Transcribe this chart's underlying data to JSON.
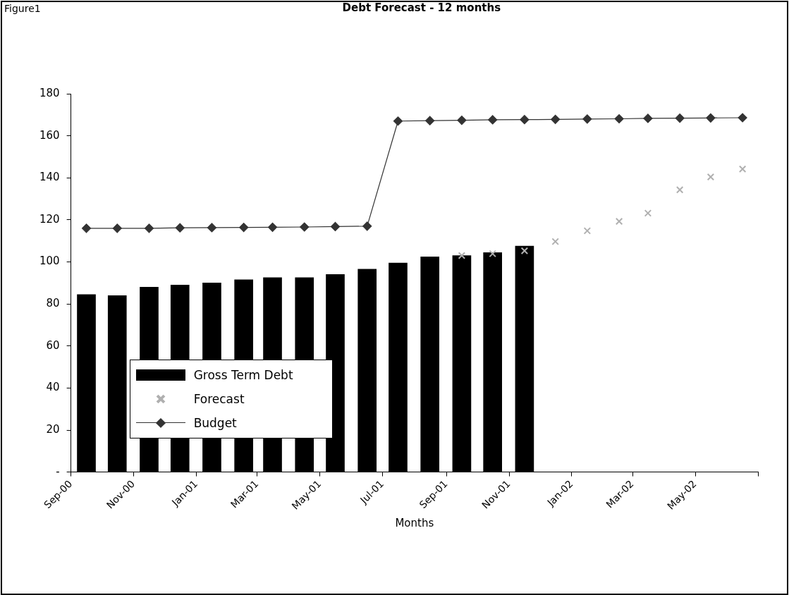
{
  "chart_data": {
    "type": "bar",
    "title": "Debt Forecast - 12 months",
    "xlabel": "Months",
    "annotations": [
      "Figure1"
    ],
    "xlim": [
      "2000-09",
      "2002-07"
    ],
    "xticks": [
      {
        "value": "2000-09",
        "label": "Sep-00"
      },
      {
        "value": "2000-11",
        "label": "Nov-00"
      },
      {
        "value": "2001-01",
        "label": "Jan-01"
      },
      {
        "value": "2001-03",
        "label": "Mar-01"
      },
      {
        "value": "2001-05",
        "label": "May-01"
      },
      {
        "value": "2001-07",
        "label": "Jul-01"
      },
      {
        "value": "2001-09",
        "label": "Sep-01"
      },
      {
        "value": "2001-11",
        "label": "Nov-01"
      },
      {
        "value": "2002-01",
        "label": "Jan-02"
      },
      {
        "value": "2002-03",
        "label": "Mar-02"
      },
      {
        "value": "2002-05",
        "label": "May-02"
      },
      {
        "value": "2002-07",
        "label": null
      }
    ],
    "ylim": [
      0,
      180
    ],
    "yticks": [
      {
        "value": 0,
        "label": "-"
      },
      20,
      40,
      60,
      80,
      100,
      120,
      140,
      160,
      180
    ],
    "grid": false,
    "legend": "bottom left",
    "series": [
      {
        "name": "Gross Term Debt",
        "color": "#000000",
        "x": [
          "2000-09-16",
          "2000-10-16",
          "2000-11-16",
          "2000-12-16",
          "2001-01-16",
          "2001-02-16",
          "2001-03-16",
          "2001-04-16",
          "2001-05-16",
          "2001-06-16",
          "2001-07-16",
          "2001-08-16",
          "2001-09-16",
          "2001-10-16",
          "2001-11-16"
        ],
        "values": [
          84.5,
          84,
          88,
          89,
          90,
          91.5,
          92.5,
          92.5,
          94,
          96.5,
          99.5,
          102.4,
          103,
          104.4,
          107.5
        ]
      },
      {
        "name": "Forecast",
        "type": "scatter",
        "color": "#b0b0b0",
        "marker": "cross",
        "x": [
          "2001-09-16",
          "2001-10-16",
          "2001-11-16",
          "2001-12-16",
          "2002-01-16",
          "2002-02-16",
          "2002-03-16",
          "2002-04-16",
          "2002-05-16",
          "2002-06-16"
        ],
        "values": [
          103,
          103.9,
          105.3,
          109.7,
          114.8,
          119.3,
          123.2,
          134.3,
          140.4,
          144.2
        ]
      },
      {
        "name": "Budget",
        "type": "line",
        "color": "#333333",
        "marker": "diamond",
        "line_style": "solid",
        "x": [
          "2000-09-16",
          "2000-10-16",
          "2000-11-16",
          "2000-12-16",
          "2001-01-16",
          "2001-02-16",
          "2001-03-16",
          "2001-04-16",
          "2001-05-16",
          "2001-06-16",
          "2001-07-16",
          "2001-08-16",
          "2001-09-16",
          "2001-10-16",
          "2001-11-16",
          "2001-12-16",
          "2002-01-16",
          "2002-02-16",
          "2002-03-16",
          "2002-04-16",
          "2002-05-16",
          "2002-06-16"
        ],
        "values": [
          116,
          116,
          116,
          116.2,
          116.3,
          116.4,
          116.5,
          116.6,
          116.8,
          117,
          167,
          167.2,
          167.4,
          167.6,
          167.7,
          167.8,
          168,
          168.1,
          168.3,
          168.4,
          168.5,
          168.6
        ]
      }
    ]
  }
}
